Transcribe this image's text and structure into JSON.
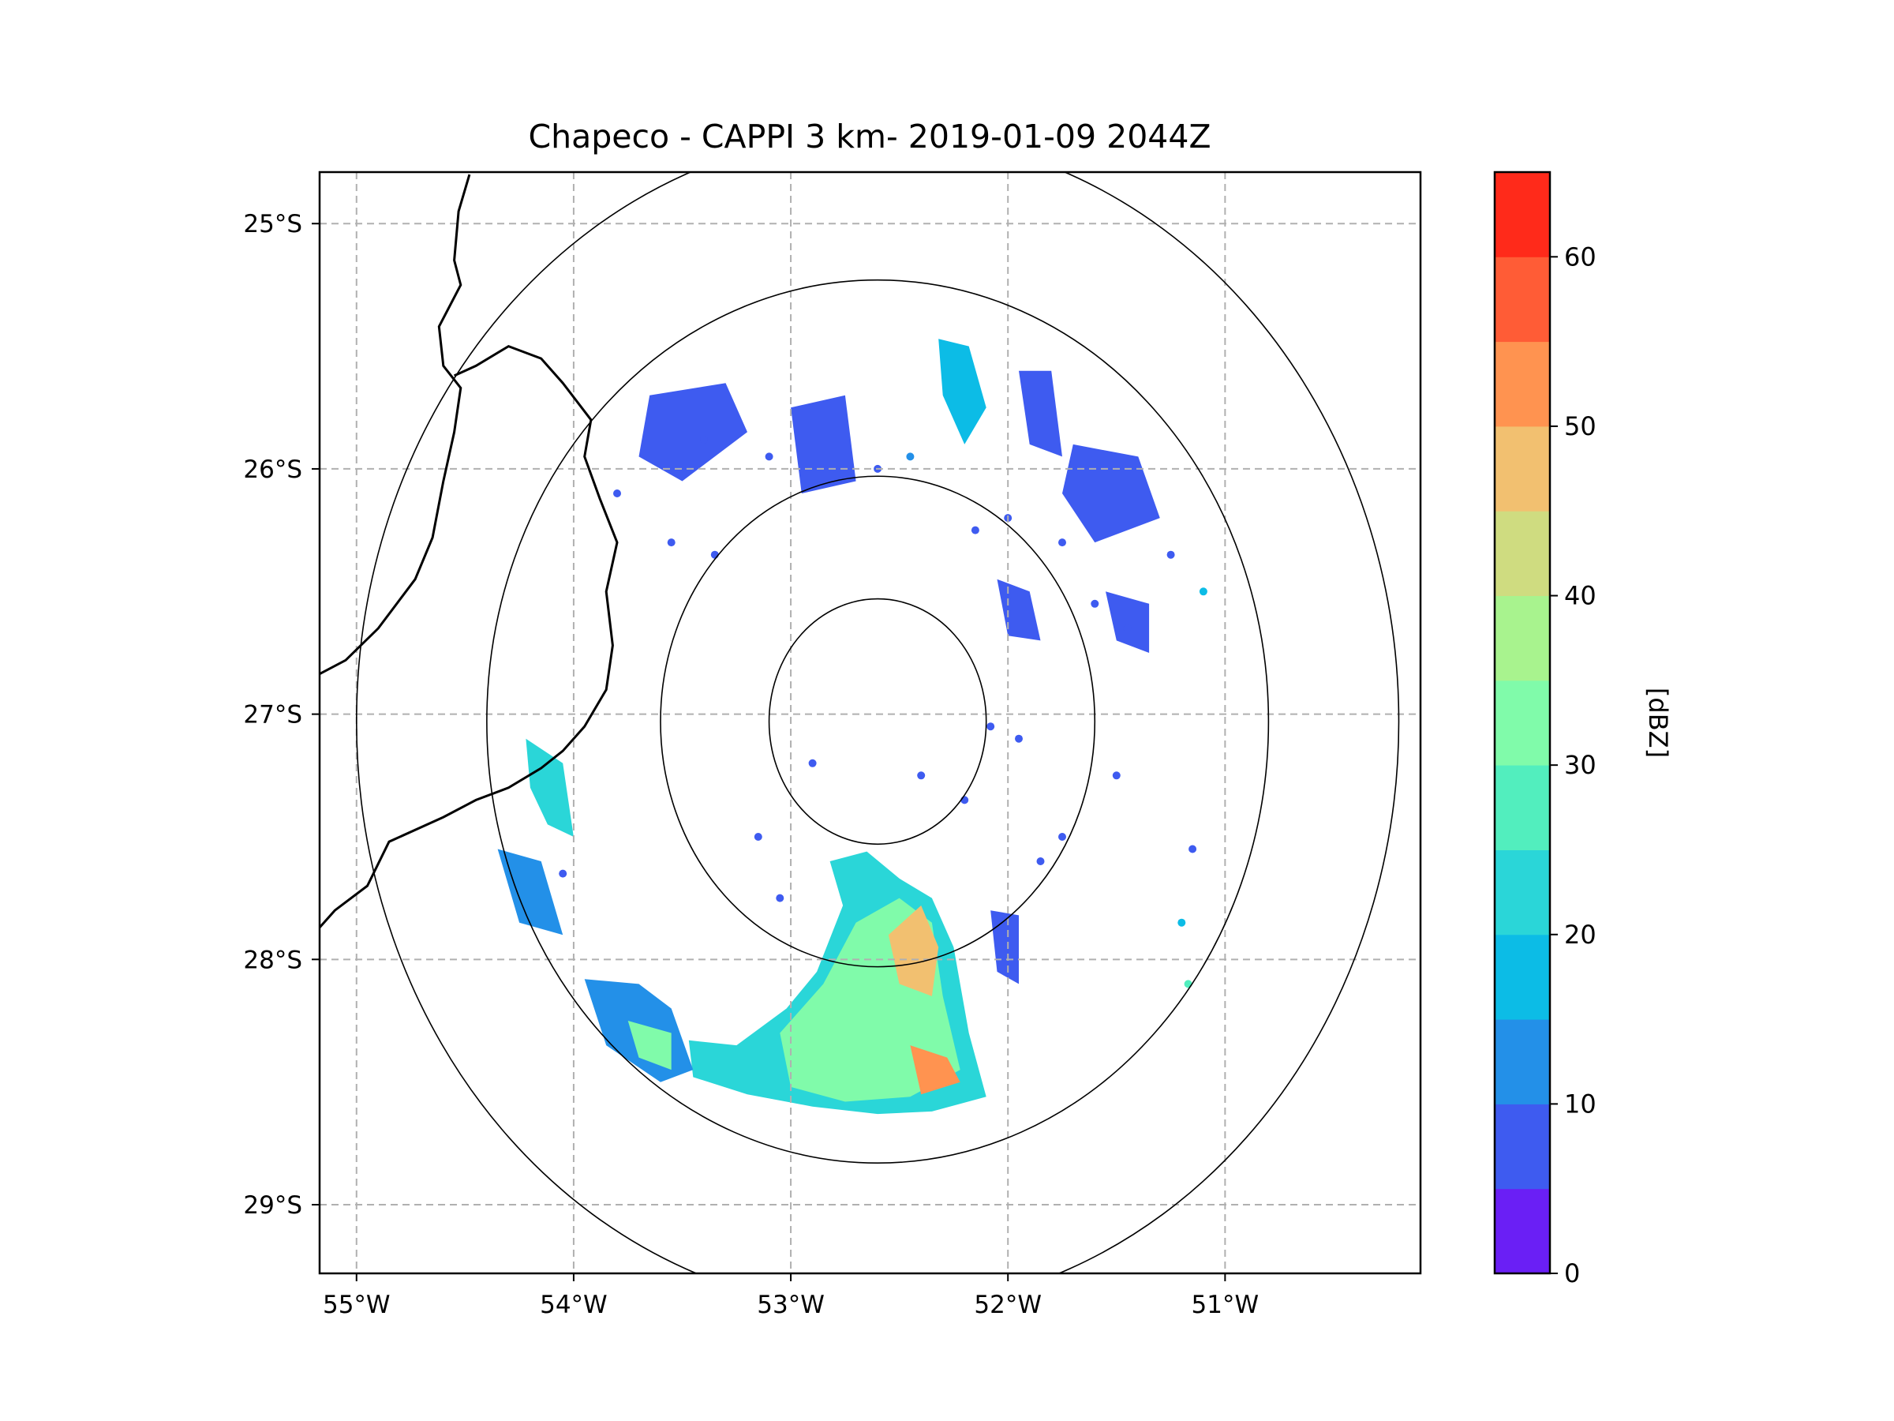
{
  "chart_data": {
    "type": "radar-map",
    "title": "Chapeco - CAPPI 3 km- 2019-01-09 2044Z",
    "station": "Chapeco",
    "product": "CAPPI 3 km",
    "datetime": "2019-01-09 2044Z",
    "lon_range": [
      -55.17,
      -50.1
    ],
    "lat_range": [
      -29.28,
      -24.79
    ],
    "radar_center": {
      "lon": -52.6,
      "lat": -27.03
    },
    "range_ring_radii_deg": [
      0.5,
      1.0,
      1.8,
      2.4
    ],
    "x_ticks": [
      {
        "value": -55,
        "label": "55°W"
      },
      {
        "value": -54,
        "label": "54°W"
      },
      {
        "value": -53,
        "label": "53°W"
      },
      {
        "value": -52,
        "label": "52°W"
      },
      {
        "value": -51,
        "label": "51°W"
      }
    ],
    "y_ticks": [
      {
        "value": -25,
        "label": "25°S"
      },
      {
        "value": -26,
        "label": "26°S"
      },
      {
        "value": -27,
        "label": "27°S"
      },
      {
        "value": -28,
        "label": "28°S"
      },
      {
        "value": -29,
        "label": "29°S"
      }
    ],
    "gridlines": true,
    "colorbar": {
      "label": "[dBZ]",
      "range": [
        0,
        65
      ],
      "ticks": [
        {
          "value": 0,
          "label": "0"
        },
        {
          "value": 10,
          "label": "10"
        },
        {
          "value": 20,
          "label": "20"
        },
        {
          "value": 30,
          "label": "30"
        },
        {
          "value": 40,
          "label": "40"
        },
        {
          "value": 50,
          "label": "50"
        },
        {
          "value": 60,
          "label": "60"
        }
      ],
      "levels": [
        0,
        5,
        10,
        15,
        20,
        25,
        30,
        35,
        40,
        45,
        50,
        55,
        60,
        65
      ],
      "colors": [
        "#6a1ff5",
        "#3e5bf0",
        "#2390e8",
        "#0cbce6",
        "#2ad6d8",
        "#52eebe",
        "#80fbaa",
        "#a8f38e",
        "#cfdc80",
        "#f2c070",
        "#ff9350",
        "#ff5c36",
        "#ff2a1a"
      ]
    },
    "echo_regions": [
      {
        "name": "south-main-cell",
        "dbz": 20,
        "points": [
          [
            -53.47,
            -28.33
          ],
          [
            -53.25,
            -28.35
          ],
          [
            -53.02,
            -28.2
          ],
          [
            -52.88,
            -28.05
          ],
          [
            -52.76,
            -27.78
          ],
          [
            -52.82,
            -27.6
          ],
          [
            -52.65,
            -27.56
          ],
          [
            -52.5,
            -27.67
          ],
          [
            -52.35,
            -27.75
          ],
          [
            -52.25,
            -27.95
          ],
          [
            -52.18,
            -28.3
          ],
          [
            -52.1,
            -28.56
          ],
          [
            -52.35,
            -28.62
          ],
          [
            -52.6,
            -28.63
          ],
          [
            -52.9,
            -28.6
          ],
          [
            -53.2,
            -28.55
          ],
          [
            -53.45,
            -28.48
          ]
        ]
      },
      {
        "name": "south-main-core",
        "dbz": 30,
        "points": [
          [
            -53.05,
            -28.3
          ],
          [
            -52.85,
            -28.1
          ],
          [
            -52.7,
            -27.85
          ],
          [
            -52.5,
            -27.75
          ],
          [
            -52.35,
            -27.85
          ],
          [
            -52.3,
            -28.15
          ],
          [
            -52.22,
            -28.45
          ],
          [
            -52.45,
            -28.56
          ],
          [
            -52.75,
            -28.58
          ],
          [
            -53.0,
            -28.52
          ]
        ]
      },
      {
        "name": "south-main-peak",
        "dbz": 45,
        "points": [
          [
            -52.55,
            -27.9
          ],
          [
            -52.4,
            -27.78
          ],
          [
            -52.32,
            -27.95
          ],
          [
            -52.35,
            -28.15
          ],
          [
            -52.5,
            -28.1
          ]
        ]
      },
      {
        "name": "south-main-peak-2",
        "dbz": 50,
        "points": [
          [
            -52.45,
            -28.35
          ],
          [
            -52.28,
            -28.4
          ],
          [
            -52.22,
            -28.5
          ],
          [
            -52.4,
            -28.55
          ]
        ]
      },
      {
        "name": "southwest-cell",
        "dbz": 10,
        "points": [
          [
            -53.95,
            -28.08
          ],
          [
            -53.7,
            -28.1
          ],
          [
            -53.55,
            -28.2
          ],
          [
            -53.45,
            -28.45
          ],
          [
            -53.6,
            -28.5
          ],
          [
            -53.85,
            -28.35
          ]
        ]
      },
      {
        "name": "southwest-core",
        "dbz": 30,
        "points": [
          [
            -53.75,
            -28.25
          ],
          [
            -53.55,
            -28.3
          ],
          [
            -53.55,
            -28.45
          ],
          [
            -53.7,
            -28.4
          ]
        ]
      },
      {
        "name": "west-cell",
        "dbz": 20,
        "points": [
          [
            -54.22,
            -27.1
          ],
          [
            -54.05,
            -27.2
          ],
          [
            -54.0,
            -27.5
          ],
          [
            -54.12,
            -27.45
          ],
          [
            -54.2,
            -27.3
          ]
        ]
      },
      {
        "name": "west-cell-2",
        "dbz": 10,
        "points": [
          [
            -54.35,
            -27.55
          ],
          [
            -54.15,
            -27.6
          ],
          [
            -54.05,
            -27.9
          ],
          [
            -54.25,
            -27.85
          ]
        ]
      },
      {
        "name": "north-cell",
        "dbz": 15,
        "points": [
          [
            -52.32,
            -25.47
          ],
          [
            -52.18,
            -25.5
          ],
          [
            -52.1,
            -25.75
          ],
          [
            -52.2,
            -25.9
          ],
          [
            -52.3,
            -25.7
          ]
        ]
      },
      {
        "name": "north-scatter-1",
        "dbz": 5,
        "points": [
          [
            -53.65,
            -25.7
          ],
          [
            -53.3,
            -25.65
          ],
          [
            -53.2,
            -25.85
          ],
          [
            -53.5,
            -26.05
          ],
          [
            -53.7,
            -25.95
          ]
        ]
      },
      {
        "name": "north-scatter-2",
        "dbz": 5,
        "points": [
          [
            -53.0,
            -25.75
          ],
          [
            -52.75,
            -25.7
          ],
          [
            -52.7,
            -26.05
          ],
          [
            -52.95,
            -26.1
          ]
        ]
      },
      {
        "name": "north-scatter-3",
        "dbz": 5,
        "points": [
          [
            -51.95,
            -25.6
          ],
          [
            -51.8,
            -25.6
          ],
          [
            -51.75,
            -25.95
          ],
          [
            -51.9,
            -25.9
          ]
        ]
      },
      {
        "name": "northeast-scatter",
        "dbz": 5,
        "points": [
          [
            -51.7,
            -25.9
          ],
          [
            -51.4,
            -25.95
          ],
          [
            -51.3,
            -26.2
          ],
          [
            -51.6,
            -26.3
          ],
          [
            -51.75,
            -26.1
          ]
        ]
      },
      {
        "name": "east-scatter",
        "dbz": 5,
        "points": [
          [
            -52.05,
            -26.45
          ],
          [
            -51.9,
            -26.5
          ],
          [
            -51.85,
            -26.7
          ],
          [
            -52.0,
            -26.68
          ]
        ]
      },
      {
        "name": "east-scatter-2",
        "dbz": 5,
        "points": [
          [
            -51.55,
            -26.5
          ],
          [
            -51.35,
            -26.55
          ],
          [
            -51.35,
            -26.75
          ],
          [
            -51.5,
            -26.7
          ]
        ]
      },
      {
        "name": "southeast-scatter",
        "dbz": 5,
        "points": [
          [
            -52.08,
            -27.8
          ],
          [
            -51.95,
            -27.82
          ],
          [
            -51.95,
            -28.1
          ],
          [
            -52.05,
            -28.05
          ]
        ]
      }
    ],
    "echo_speckles": [
      {
        "lon": -53.4,
        "lat": -25.88,
        "dbz": 5
      },
      {
        "lon": -53.1,
        "lat": -25.95,
        "dbz": 5
      },
      {
        "lon": -52.6,
        "lat": -26.0,
        "dbz": 5
      },
      {
        "lon": -52.45,
        "lat": -25.95,
        "dbz": 10
      },
      {
        "lon": -52.0,
        "lat": -26.2,
        "dbz": 5
      },
      {
        "lon": -51.75,
        "lat": -26.3,
        "dbz": 5
      },
      {
        "lon": -51.25,
        "lat": -26.35,
        "dbz": 5
      },
      {
        "lon": -51.1,
        "lat": -26.5,
        "dbz": 15
      },
      {
        "lon": -51.45,
        "lat": -26.65,
        "dbz": 5
      },
      {
        "lon": -52.08,
        "lat": -27.05,
        "dbz": 5
      },
      {
        "lon": -51.95,
        "lat": -27.1,
        "dbz": 5
      },
      {
        "lon": -51.5,
        "lat": -27.25,
        "dbz": 5
      },
      {
        "lon": -51.15,
        "lat": -27.55,
        "dbz": 5
      },
      {
        "lon": -51.2,
        "lat": -27.85,
        "dbz": 15
      },
      {
        "lon": -51.17,
        "lat": -28.1,
        "dbz": 25
      },
      {
        "lon": -51.75,
        "lat": -27.5,
        "dbz": 5
      },
      {
        "lon": -53.15,
        "lat": -27.5,
        "dbz": 5
      },
      {
        "lon": -53.05,
        "lat": -27.75,
        "dbz": 5
      },
      {
        "lon": -54.05,
        "lat": -27.65,
        "dbz": 5
      },
      {
        "lon": -53.8,
        "lat": -26.1,
        "dbz": 5
      },
      {
        "lon": -53.55,
        "lat": -26.3,
        "dbz": 5
      },
      {
        "lon": -53.35,
        "lat": -26.35,
        "dbz": 5
      },
      {
        "lon": -52.9,
        "lat": -27.2,
        "dbz": 5
      },
      {
        "lon": -52.4,
        "lat": -27.25,
        "dbz": 5
      },
      {
        "lon": -52.2,
        "lat": -27.35,
        "dbz": 5
      },
      {
        "lon": -51.85,
        "lat": -27.6,
        "dbz": 5
      },
      {
        "lon": -51.6,
        "lat": -26.55,
        "dbz": 5
      },
      {
        "lon": -52.15,
        "lat": -26.25,
        "dbz": 5
      }
    ],
    "borders": [
      {
        "name": "state-border-west",
        "points": [
          [
            -54.48,
            -24.8
          ],
          [
            -54.53,
            -24.95
          ],
          [
            -54.55,
            -25.15
          ],
          [
            -54.52,
            -25.25
          ],
          [
            -54.62,
            -25.42
          ],
          [
            -54.6,
            -25.58
          ],
          [
            -54.52,
            -25.67
          ],
          [
            -54.55,
            -25.85
          ],
          [
            -54.6,
            -26.05
          ],
          [
            -54.65,
            -26.28
          ],
          [
            -54.73,
            -26.45
          ],
          [
            -54.9,
            -26.65
          ],
          [
            -55.05,
            -26.78
          ],
          [
            -55.2,
            -26.85
          ]
        ]
      },
      {
        "name": "state-border-west-south",
        "points": [
          [
            -55.2,
            -27.9
          ],
          [
            -55.1,
            -27.8
          ],
          [
            -54.95,
            -27.7
          ],
          [
            -54.85,
            -27.52
          ],
          [
            -54.6,
            -27.42
          ],
          [
            -54.45,
            -27.35
          ],
          [
            -54.3,
            -27.3
          ],
          [
            -54.15,
            -27.22
          ],
          [
            -54.05,
            -27.15
          ],
          [
            -53.95,
            -27.05
          ],
          [
            -53.85,
            -26.9
          ],
          [
            -53.82,
            -26.72
          ],
          [
            -53.85,
            -26.5
          ],
          [
            -53.8,
            -26.3
          ],
          [
            -53.88,
            -26.12
          ],
          [
            -53.95,
            -25.95
          ],
          [
            -53.92,
            -25.8
          ],
          [
            -54.05,
            -25.65
          ],
          [
            -54.15,
            -25.55
          ],
          [
            -54.3,
            -25.5
          ],
          [
            -54.45,
            -25.58
          ],
          [
            -54.55,
            -25.62
          ]
        ]
      }
    ]
  }
}
